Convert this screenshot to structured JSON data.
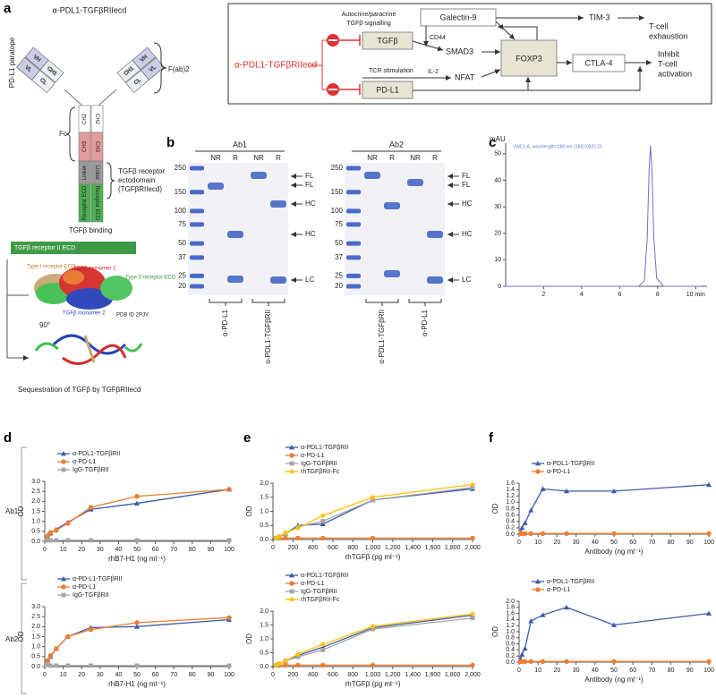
{
  "panels": [
    "a",
    "b",
    "c",
    "d",
    "e",
    "f"
  ],
  "row_labels": [
    "Ab1",
    "Ab2"
  ],
  "antibody": {
    "title": "α-PDL1-TGFβRIIecd",
    "paratope": "PD-L1 paratope",
    "domains": [
      "VH",
      "CH1",
      "VL",
      "CL",
      "CH2",
      "CH3",
      "Linker",
      "Receptor ECD"
    ],
    "fab": "F(ab)2",
    "fc": "Fc",
    "receptor": [
      "TGFβ receptor",
      "ectodomain",
      "(TGFβRIIecd)"
    ],
    "binding": "TGFβ binding",
    "structure_title": "TGFβ receptor II ECD",
    "structure_labels": [
      "Type I receptor ECD",
      "TGFβ monomer 1",
      "Type II receptor ECD",
      "TGFβ monomer 2",
      "PDB ID 2PJY"
    ],
    "rotation": "90°",
    "caption": "Sequestration of TGFβ by TGFβRIIecd"
  },
  "pathway": {
    "drug": "α-PDL1-TGFβRIIecd",
    "nodes": [
      "TGFβ",
      "PD-L1",
      "Galectin-9",
      "SMAD3",
      "NFAT",
      "FOXP3",
      "TIM-3",
      "CTLA-4"
    ],
    "edge_labels": [
      [
        "Autocrine/paracrine",
        "TGFβ-signalling"
      ],
      "CD44",
      "TCR stimulation",
      "IL-2"
    ],
    "outcomes": [
      [
        "T-cell",
        "exhaustion"
      ],
      [
        "Inhibit",
        "T-cell",
        "activation"
      ]
    ]
  },
  "gels": {
    "markers": [
      250,
      150,
      100,
      75,
      50,
      37,
      25,
      20
    ],
    "blots": [
      {
        "name": "Ab1",
        "conditions": [
          "NR",
          "R",
          "NR",
          "R"
        ],
        "lanes": [
          "α-PD-L1",
          "α-PDL1-TGFβRII"
        ],
        "bands": [
          "FL",
          "FL",
          "HC",
          "HC",
          "LC"
        ]
      },
      {
        "name": "Ab2",
        "conditions": [
          "NR",
          "R",
          "NR",
          "R"
        ],
        "lanes": [
          "α-PDL1-TGFβRII",
          "α-PD-L1"
        ],
        "bands": [
          "FL",
          "FL",
          "HC",
          "HC",
          "LC"
        ]
      }
    ]
  },
  "chart_data": [
    {
      "type": "line",
      "y_label": "mAU",
      "annotation": "VWD1 A, wavelength=280 nm (1AE=0821.D)",
      "x": [
        0,
        7.0,
        7.3,
        7.45,
        7.55,
        7.62,
        7.7,
        7.8,
        7.95,
        8.3,
        10.3
      ],
      "xlim": [
        0,
        10.6
      ],
      "ylim": [
        0,
        54
      ],
      "xticks": [
        2,
        4,
        6,
        8,
        {
          "value": 10,
          "label": "10 min"
        }
      ],
      "yticks": [
        0,
        10,
        20,
        30,
        40,
        50
      ],
      "series": [
        {
          "color": "#7a6cc6",
          "values": [
            0,
            0,
            2,
            18,
            44,
            53,
            44,
            18,
            3,
            0,
            0
          ]
        }
      ]
    },
    {
      "type": "line",
      "x_label": "rhB7-H1 (ng ml⁻¹)",
      "y_label": "OD",
      "legend": "upper left",
      "x": [
        0.78,
        1.56,
        3.125,
        6.25,
        12.5,
        25,
        50,
        100
      ],
      "xlim": [
        0,
        100
      ],
      "ylim": [
        0,
        3
      ],
      "xticks": [
        0,
        10,
        20,
        30,
        40,
        50,
        60,
        70,
        80,
        90,
        100
      ],
      "yticks": [
        {
          "value": 0,
          "label": "0.0"
        },
        0.5,
        {
          "value": 1,
          "label": "1.0"
        },
        1.5,
        {
          "value": 2,
          "label": "2.0"
        },
        2.5,
        {
          "value": 3,
          "label": "3.0"
        }
      ],
      "series": [
        {
          "name": "α-PDL1-TGFβRII",
          "color": "#3d5aa8",
          "marker": "triangle",
          "values": [
            0.1,
            0.3,
            0.4,
            0.6,
            0.95,
            1.6,
            1.9,
            2.6
          ]
        },
        {
          "name": "α-PD-L1",
          "color": "#ec7d31",
          "marker": "circle",
          "values": [
            0.1,
            0.25,
            0.45,
            0.55,
            0.9,
            1.7,
            2.25,
            2.6
          ]
        },
        {
          "name": "IgG-TGFβRII",
          "color": "#a5a5a5",
          "marker": "square",
          "values": [
            0.05,
            0.05,
            0.05,
            0.05,
            0.05,
            0.05,
            0.05,
            0.05
          ]
        }
      ]
    },
    {
      "type": "line",
      "x_label": "rhB7-H1 (ng ml⁻¹)",
      "y_label": "OD",
      "legend": "upper left",
      "x": [
        0.78,
        1.56,
        3.125,
        6.25,
        12.5,
        25,
        50,
        100
      ],
      "xlim": [
        0,
        100
      ],
      "ylim": [
        0,
        3
      ],
      "xticks": [
        0,
        10,
        20,
        30,
        40,
        50,
        60,
        70,
        80,
        90,
        100
      ],
      "yticks": [
        {
          "value": 0,
          "label": "0.0"
        },
        0.5,
        {
          "value": 1,
          "label": "1.0"
        },
        1.5,
        {
          "value": 2,
          "label": "2.0"
        },
        2.5,
        {
          "value": 3,
          "label": "3.0"
        }
      ],
      "series": [
        {
          "name": "α-PD-L1-TGFβRII",
          "color": "#3d5aa8",
          "marker": "triangle",
          "values": [
            0.1,
            0.3,
            0.5,
            0.9,
            1.5,
            1.95,
            2.0,
            2.35
          ]
        },
        {
          "name": "α-PD-L1",
          "color": "#ec7d31",
          "marker": "circle",
          "values": [
            0.1,
            0.3,
            0.55,
            0.9,
            1.5,
            1.85,
            2.2,
            2.45
          ]
        },
        {
          "name": "IgG-TGFβRII",
          "color": "#a5a5a5",
          "marker": "square",
          "values": [
            0.1,
            0.1,
            0.05,
            0.05,
            0.05,
            0.05,
            0.05,
            0.05
          ]
        }
      ]
    },
    {
      "type": "line",
      "x_label": "rhTGFβ (pg ml⁻¹)",
      "y_label": "OD",
      "legend": "upper left",
      "x": [
        31.25,
        62.5,
        125,
        250,
        500,
        1000,
        2000
      ],
      "xlim": [
        0,
        2000
      ],
      "ylim": [
        0,
        2
      ],
      "xticks": [
        0,
        200,
        400,
        600,
        800,
        {
          "value": 1000,
          "label": "1,000"
        },
        {
          "value": 1200,
          "label": "1,200"
        },
        {
          "value": 1400,
          "label": "1,400"
        },
        {
          "value": 1600,
          "label": "1,600"
        },
        {
          "value": 1800,
          "label": "1,800"
        },
        {
          "value": 2000,
          "label": "2,000"
        }
      ],
      "yticks": [
        {
          "value": 0,
          "label": "0.0"
        },
        0.5,
        {
          "value": 1,
          "label": "1.0"
        },
        1.5,
        {
          "value": 2,
          "label": "2.0"
        }
      ],
      "series": [
        {
          "name": "α-PDL1-TGFβRII",
          "color": "#3d5aa8",
          "marker": "triangle",
          "values": [
            0.05,
            0.1,
            0.2,
            0.5,
            0.55,
            1.4,
            1.8
          ]
        },
        {
          "name": "α-PD-L1",
          "color": "#ec7d31",
          "marker": "circle",
          "values": [
            0.05,
            0.05,
            0.05,
            0.05,
            0.05,
            0.05,
            0.05
          ]
        },
        {
          "name": "IgG-TGFβRII",
          "color": "#a5a5a5",
          "marker": "square",
          "values": [
            0.05,
            0.1,
            0.2,
            0.45,
            0.65,
            1.4,
            1.85
          ]
        },
        {
          "name": "rhTGFβRII-Fc",
          "color": "#ffc000",
          "marker": "diamond",
          "values": [
            0.05,
            0.1,
            0.25,
            0.4,
            0.85,
            1.5,
            1.95
          ]
        }
      ]
    },
    {
      "type": "line",
      "x_label": "rhTGFβ (pg ml⁻¹)",
      "y_label": "OD",
      "legend": "upper left",
      "x": [
        31.25,
        62.5,
        125,
        250,
        500,
        1000,
        2000
      ],
      "xlim": [
        0,
        2000
      ],
      "ylim": [
        0,
        2
      ],
      "xticks": [
        0,
        200,
        400,
        600,
        800,
        {
          "value": 1000,
          "label": "1,000"
        },
        {
          "value": 1200,
          "label": "1,200"
        },
        {
          "value": 1400,
          "label": "1,400"
        },
        {
          "value": 1600,
          "label": "1,600"
        },
        {
          "value": 1800,
          "label": "1,800"
        },
        {
          "value": 2000,
          "label": "2,000"
        }
      ],
      "yticks": [
        {
          "value": 0,
          "label": "0.0"
        },
        0.5,
        {
          "value": 1,
          "label": "1.0"
        },
        1.5,
        {
          "value": 2,
          "label": "2.0"
        }
      ],
      "series": [
        {
          "name": "α-PDL1-TGFβRII",
          "color": "#3d5aa8",
          "marker": "triangle",
          "values": [
            0.05,
            0.1,
            0.2,
            0.4,
            0.7,
            1.4,
            1.85
          ]
        },
        {
          "name": "α-PD-L1",
          "color": "#ec7d31",
          "marker": "circle",
          "values": [
            0.05,
            0.05,
            0.05,
            0.05,
            0.05,
            0.05,
            0.05
          ]
        },
        {
          "name": "IgG-TGFβRII",
          "color": "#a5a5a5",
          "marker": "square",
          "values": [
            0.05,
            0.1,
            0.2,
            0.35,
            0.6,
            1.35,
            1.75
          ]
        },
        {
          "name": "rhTGFβRII-Fc",
          "color": "#ffc000",
          "marker": "diamond",
          "values": [
            0.05,
            0.1,
            0.2,
            0.45,
            0.8,
            1.45,
            1.9
          ]
        }
      ]
    },
    {
      "type": "line",
      "x_label": "Antibody (ng ml⁻¹)",
      "y_label": "OD",
      "legend": "upper left",
      "x": [
        0.78,
        1.56,
        3.125,
        6.25,
        12.5,
        25,
        50,
        100
      ],
      "xlim": [
        0,
        100
      ],
      "ylim": [
        0,
        1.6
      ],
      "xticks": [
        0,
        10,
        20,
        30,
        40,
        50,
        60,
        70,
        80,
        90,
        100
      ],
      "yticks": [
        {
          "value": 0,
          "label": "0.0"
        },
        0.2,
        0.4,
        0.6,
        0.8,
        {
          "value": 1,
          "label": "1.0"
        },
        1.2,
        1.4,
        1.6
      ],
      "series": [
        {
          "name": "α-PDL1-TGFβRII",
          "color": "#3d5aa8",
          "marker": "triangle",
          "values": [
            0.05,
            0.2,
            0.35,
            0.75,
            1.42,
            1.35,
            1.35,
            1.55
          ]
        },
        {
          "name": "α-PD-L1",
          "color": "#ec7d31",
          "marker": "circle",
          "values": [
            0.02,
            0.02,
            0.02,
            0.02,
            0.02,
            0.02,
            0.02,
            0.02
          ]
        }
      ]
    },
    {
      "type": "line",
      "x_label": "Antibody (ng ml⁻¹)",
      "y_label": "OD",
      "legend": "upper left",
      "x": [
        0.78,
        1.56,
        3.125,
        6.25,
        12.5,
        25,
        50,
        100
      ],
      "xlim": [
        0,
        100
      ],
      "ylim": [
        0,
        2
      ],
      "xticks": [
        0,
        10,
        20,
        30,
        40,
        50,
        60,
        70,
        80,
        90,
        100
      ],
      "yticks": [
        {
          "value": 0,
          "label": "0.0"
        },
        0.2,
        0.4,
        0.6,
        0.8,
        {
          "value": 1,
          "label": "1.0"
        },
        1.2,
        1.4,
        1.6,
        1.8,
        {
          "value": 2,
          "label": "2.0"
        }
      ],
      "series": [
        {
          "name": "α-PDL1-TGFβRII",
          "color": "#3d5aa8",
          "marker": "triangle",
          "values": [
            0.1,
            0.25,
            0.45,
            1.35,
            1.55,
            1.8,
            1.22,
            1.6
          ]
        },
        {
          "name": "α-PD-L1",
          "color": "#ec7d31",
          "marker": "circle",
          "values": [
            0.02,
            0.02,
            0.02,
            0.02,
            0.02,
            0.02,
            0.02,
            0.02
          ]
        }
      ]
    }
  ]
}
